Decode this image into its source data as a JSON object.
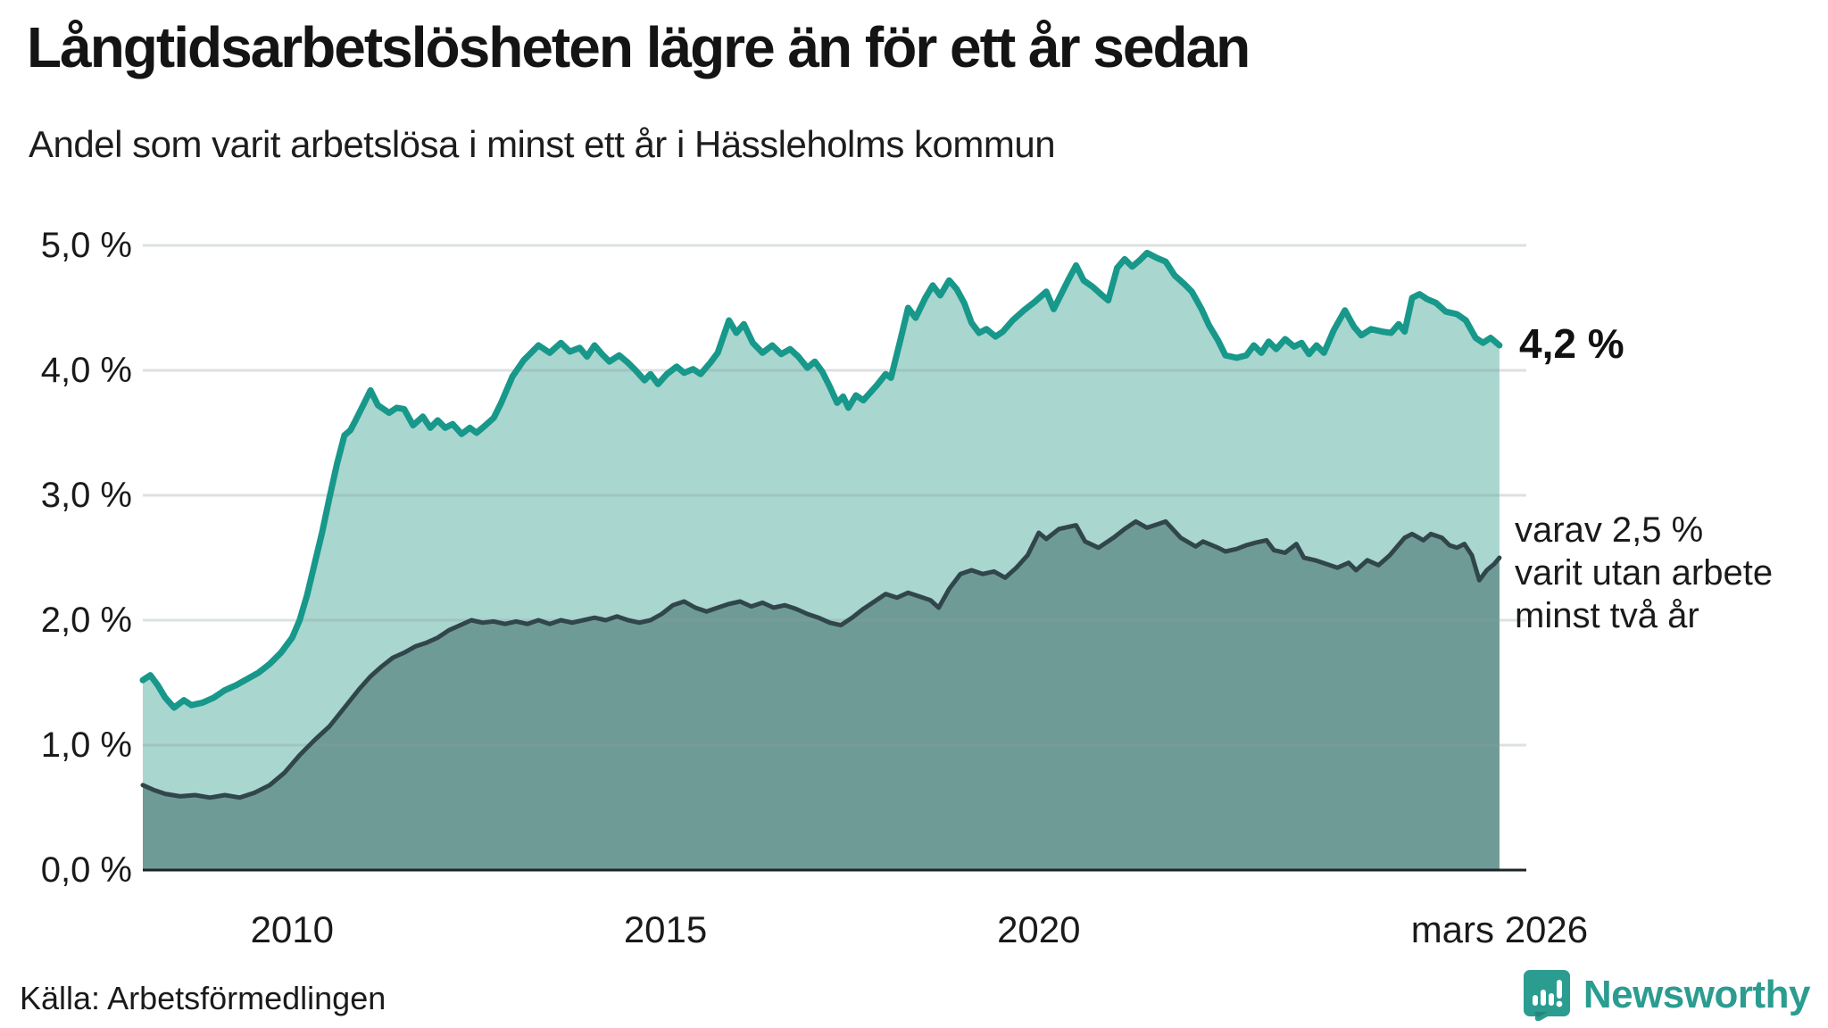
{
  "title": "Långtidsarbetslösheten lägre än för ett år sedan",
  "subtitle": "Andel som varit arbetslösa i minst ett år i Hässleholms kommun",
  "annotations": {
    "end_value_label": "4,2 %",
    "secondary_lines": [
      "varav 2,5 %",
      "varit utan arbete",
      "minst två år"
    ]
  },
  "footer": {
    "source": "Källa: Arbetsförmedlingen",
    "brand": "Newsworthy"
  },
  "colors": {
    "accent_teal": "#17988a",
    "light_fill": "#a9d6cf",
    "dark_line": "#31464b",
    "dark_fill": "#6f9b97",
    "gridline": "rgba(140,155,160,0.30)",
    "baseline": "#1c2527",
    "brand_teal": "#2b9c90",
    "text": "#1a1a1a"
  },
  "chart_data": {
    "type": "area",
    "title": "Långtidsarbetslösheten lägre än för ett år sedan",
    "subtitle": "Andel som varit arbetslösa i minst ett år i Hässleholms kommun",
    "unit": "%",
    "xlim": [
      2008.0,
      2026.25
    ],
    "ylim": [
      0,
      5.25
    ],
    "grid": "horizontal",
    "legend_position": "none",
    "y_ticks": [
      {
        "label": "5,0 %",
        "value": 5.0
      },
      {
        "label": "4,0 %",
        "value": 4.0
      },
      {
        "label": "3,0 %",
        "value": 3.0
      },
      {
        "label": "2,0 %",
        "value": 2.0
      },
      {
        "label": "1,0 %",
        "value": 1.0
      },
      {
        "label": "0,0 %",
        "value": 0.0
      }
    ],
    "x_ticks": [
      {
        "label": "2010",
        "year": 2010.0
      },
      {
        "label": "2015",
        "year": 2015.0
      },
      {
        "label": "2020",
        "year": 2020.0
      },
      {
        "label": "mars 2026",
        "year": 2026.17
      }
    ],
    "series": [
      {
        "name": "Andel arbetslösa minst ett år",
        "end_label": "4,2 %",
        "end_value": 4.2,
        "stroke": "#17988a",
        "fill": "#a9d6cf",
        "stroke_width": 7,
        "points": [
          [
            2008.0,
            1.52
          ],
          [
            2008.1,
            1.56
          ],
          [
            2008.2,
            1.48
          ],
          [
            2008.3,
            1.38
          ],
          [
            2008.42,
            1.3
          ],
          [
            2008.55,
            1.36
          ],
          [
            2008.65,
            1.32
          ],
          [
            2008.8,
            1.34
          ],
          [
            2008.95,
            1.38
          ],
          [
            2009.1,
            1.44
          ],
          [
            2009.25,
            1.48
          ],
          [
            2009.4,
            1.53
          ],
          [
            2009.55,
            1.58
          ],
          [
            2009.7,
            1.65
          ],
          [
            2009.85,
            1.74
          ],
          [
            2010.0,
            1.86
          ],
          [
            2010.1,
            2.0
          ],
          [
            2010.2,
            2.2
          ],
          [
            2010.3,
            2.45
          ],
          [
            2010.4,
            2.7
          ],
          [
            2010.5,
            2.98
          ],
          [
            2010.6,
            3.25
          ],
          [
            2010.7,
            3.48
          ],
          [
            2010.78,
            3.52
          ],
          [
            2010.85,
            3.6
          ],
          [
            2010.95,
            3.72
          ],
          [
            2011.05,
            3.84
          ],
          [
            2011.15,
            3.72
          ],
          [
            2011.3,
            3.66
          ],
          [
            2011.4,
            3.7
          ],
          [
            2011.5,
            3.69
          ],
          [
            2011.62,
            3.56
          ],
          [
            2011.75,
            3.63
          ],
          [
            2011.85,
            3.54
          ],
          [
            2011.95,
            3.6
          ],
          [
            2012.05,
            3.54
          ],
          [
            2012.15,
            3.57
          ],
          [
            2012.27,
            3.49
          ],
          [
            2012.38,
            3.54
          ],
          [
            2012.47,
            3.5
          ],
          [
            2012.57,
            3.55
          ],
          [
            2012.7,
            3.62
          ],
          [
            2012.8,
            3.74
          ],
          [
            2012.95,
            3.95
          ],
          [
            2013.1,
            4.08
          ],
          [
            2013.3,
            4.2
          ],
          [
            2013.45,
            4.14
          ],
          [
            2013.6,
            4.22
          ],
          [
            2013.72,
            4.15
          ],
          [
            2013.85,
            4.18
          ],
          [
            2013.95,
            4.11
          ],
          [
            2014.05,
            4.2
          ],
          [
            2014.15,
            4.13
          ],
          [
            2014.25,
            4.07
          ],
          [
            2014.38,
            4.12
          ],
          [
            2014.5,
            4.06
          ],
          [
            2014.6,
            4.0
          ],
          [
            2014.72,
            3.92
          ],
          [
            2014.8,
            3.97
          ],
          [
            2014.9,
            3.89
          ],
          [
            2015.02,
            3.97
          ],
          [
            2015.15,
            4.03
          ],
          [
            2015.25,
            3.98
          ],
          [
            2015.37,
            4.01
          ],
          [
            2015.47,
            3.97
          ],
          [
            2015.6,
            4.06
          ],
          [
            2015.7,
            4.14
          ],
          [
            2015.85,
            4.4
          ],
          [
            2015.95,
            4.3
          ],
          [
            2016.05,
            4.37
          ],
          [
            2016.17,
            4.22
          ],
          [
            2016.3,
            4.14
          ],
          [
            2016.43,
            4.2
          ],
          [
            2016.55,
            4.13
          ],
          [
            2016.67,
            4.17
          ],
          [
            2016.78,
            4.11
          ],
          [
            2016.9,
            4.02
          ],
          [
            2017.0,
            4.07
          ],
          [
            2017.1,
            3.99
          ],
          [
            2017.2,
            3.87
          ],
          [
            2017.3,
            3.74
          ],
          [
            2017.38,
            3.79
          ],
          [
            2017.45,
            3.7
          ],
          [
            2017.55,
            3.8
          ],
          [
            2017.65,
            3.76
          ],
          [
            2017.83,
            3.88
          ],
          [
            2017.95,
            3.97
          ],
          [
            2018.02,
            3.94
          ],
          [
            2018.15,
            4.25
          ],
          [
            2018.25,
            4.5
          ],
          [
            2018.35,
            4.42
          ],
          [
            2018.48,
            4.58
          ],
          [
            2018.58,
            4.68
          ],
          [
            2018.68,
            4.6
          ],
          [
            2018.8,
            4.72
          ],
          [
            2018.9,
            4.65
          ],
          [
            2019.0,
            4.54
          ],
          [
            2019.1,
            4.38
          ],
          [
            2019.2,
            4.3
          ],
          [
            2019.3,
            4.33
          ],
          [
            2019.42,
            4.27
          ],
          [
            2019.52,
            4.31
          ],
          [
            2019.65,
            4.4
          ],
          [
            2019.8,
            4.48
          ],
          [
            2019.95,
            4.55
          ],
          [
            2020.1,
            4.63
          ],
          [
            2020.2,
            4.49
          ],
          [
            2020.3,
            4.61
          ],
          [
            2020.4,
            4.73
          ],
          [
            2020.5,
            4.84
          ],
          [
            2020.6,
            4.72
          ],
          [
            2020.72,
            4.67
          ],
          [
            2020.85,
            4.6
          ],
          [
            2020.93,
            4.56
          ],
          [
            2021.05,
            4.82
          ],
          [
            2021.15,
            4.89
          ],
          [
            2021.25,
            4.83
          ],
          [
            2021.35,
            4.88
          ],
          [
            2021.45,
            4.94
          ],
          [
            2021.58,
            4.9
          ],
          [
            2021.7,
            4.87
          ],
          [
            2021.82,
            4.76
          ],
          [
            2021.95,
            4.69
          ],
          [
            2022.05,
            4.63
          ],
          [
            2022.18,
            4.49
          ],
          [
            2022.28,
            4.36
          ],
          [
            2022.4,
            4.24
          ],
          [
            2022.5,
            4.12
          ],
          [
            2022.65,
            4.1
          ],
          [
            2022.78,
            4.12
          ],
          [
            2022.88,
            4.2
          ],
          [
            2022.98,
            4.14
          ],
          [
            2023.08,
            4.23
          ],
          [
            2023.18,
            4.17
          ],
          [
            2023.3,
            4.25
          ],
          [
            2023.42,
            4.19
          ],
          [
            2023.52,
            4.22
          ],
          [
            2023.62,
            4.13
          ],
          [
            2023.72,
            4.2
          ],
          [
            2023.82,
            4.14
          ],
          [
            2023.95,
            4.32
          ],
          [
            2024.1,
            4.48
          ],
          [
            2024.22,
            4.35
          ],
          [
            2024.32,
            4.28
          ],
          [
            2024.45,
            4.33
          ],
          [
            2024.6,
            4.31
          ],
          [
            2024.72,
            4.3
          ],
          [
            2024.82,
            4.37
          ],
          [
            2024.9,
            4.31
          ],
          [
            2025.0,
            4.58
          ],
          [
            2025.1,
            4.61
          ],
          [
            2025.2,
            4.57
          ],
          [
            2025.32,
            4.54
          ],
          [
            2025.45,
            4.47
          ],
          [
            2025.6,
            4.45
          ],
          [
            2025.72,
            4.4
          ],
          [
            2025.85,
            4.26
          ],
          [
            2025.95,
            4.22
          ],
          [
            2026.05,
            4.26
          ],
          [
            2026.17,
            4.2
          ]
        ]
      },
      {
        "name": "varav utan arbete minst två år",
        "end_label": "varav 2,5 % varit utan arbete minst två år",
        "end_value": 2.5,
        "stroke": "#31464b",
        "fill": "#6f9b97",
        "stroke_width": 5,
        "points": [
          [
            2008.0,
            0.68
          ],
          [
            2008.15,
            0.64
          ],
          [
            2008.3,
            0.61
          ],
          [
            2008.5,
            0.59
          ],
          [
            2008.7,
            0.6
          ],
          [
            2008.9,
            0.58
          ],
          [
            2009.1,
            0.6
          ],
          [
            2009.3,
            0.58
          ],
          [
            2009.5,
            0.62
          ],
          [
            2009.7,
            0.68
          ],
          [
            2009.9,
            0.78
          ],
          [
            2010.1,
            0.92
          ],
          [
            2010.3,
            1.04
          ],
          [
            2010.5,
            1.15
          ],
          [
            2010.7,
            1.3
          ],
          [
            2010.9,
            1.45
          ],
          [
            2011.05,
            1.55
          ],
          [
            2011.2,
            1.63
          ],
          [
            2011.35,
            1.7
          ],
          [
            2011.5,
            1.74
          ],
          [
            2011.65,
            1.79
          ],
          [
            2011.8,
            1.82
          ],
          [
            2011.95,
            1.86
          ],
          [
            2012.1,
            1.92
          ],
          [
            2012.25,
            1.96
          ],
          [
            2012.4,
            2.0
          ],
          [
            2012.55,
            1.98
          ],
          [
            2012.7,
            1.99
          ],
          [
            2012.85,
            1.97
          ],
          [
            2013.0,
            1.99
          ],
          [
            2013.15,
            1.97
          ],
          [
            2013.3,
            2.0
          ],
          [
            2013.45,
            1.97
          ],
          [
            2013.6,
            2.0
          ],
          [
            2013.75,
            1.98
          ],
          [
            2013.9,
            2.0
          ],
          [
            2014.05,
            2.02
          ],
          [
            2014.2,
            2.0
          ],
          [
            2014.35,
            2.03
          ],
          [
            2014.5,
            2.0
          ],
          [
            2014.65,
            1.98
          ],
          [
            2014.8,
            2.0
          ],
          [
            2014.95,
            2.05
          ],
          [
            2015.1,
            2.12
          ],
          [
            2015.25,
            2.15
          ],
          [
            2015.4,
            2.1
          ],
          [
            2015.55,
            2.07
          ],
          [
            2015.7,
            2.1
          ],
          [
            2015.85,
            2.13
          ],
          [
            2016.0,
            2.15
          ],
          [
            2016.15,
            2.11
          ],
          [
            2016.3,
            2.14
          ],
          [
            2016.45,
            2.1
          ],
          [
            2016.6,
            2.12
          ],
          [
            2016.75,
            2.09
          ],
          [
            2016.9,
            2.05
          ],
          [
            2017.05,
            2.02
          ],
          [
            2017.2,
            1.98
          ],
          [
            2017.35,
            1.96
          ],
          [
            2017.5,
            2.02
          ],
          [
            2017.65,
            2.09
          ],
          [
            2017.8,
            2.15
          ],
          [
            2017.95,
            2.21
          ],
          [
            2018.1,
            2.18
          ],
          [
            2018.25,
            2.22
          ],
          [
            2018.4,
            2.19
          ],
          [
            2018.55,
            2.16
          ],
          [
            2018.66,
            2.1
          ],
          [
            2018.8,
            2.25
          ],
          [
            2018.95,
            2.37
          ],
          [
            2019.1,
            2.4
          ],
          [
            2019.25,
            2.37
          ],
          [
            2019.4,
            2.39
          ],
          [
            2019.55,
            2.34
          ],
          [
            2019.7,
            2.42
          ],
          [
            2019.85,
            2.52
          ],
          [
            2020.0,
            2.7
          ],
          [
            2020.1,
            2.65
          ],
          [
            2020.27,
            2.73
          ],
          [
            2020.5,
            2.76
          ],
          [
            2020.62,
            2.63
          ],
          [
            2020.8,
            2.58
          ],
          [
            2021.0,
            2.66
          ],
          [
            2021.15,
            2.73
          ],
          [
            2021.3,
            2.79
          ],
          [
            2021.45,
            2.74
          ],
          [
            2021.6,
            2.77
          ],
          [
            2021.7,
            2.79
          ],
          [
            2021.9,
            2.66
          ],
          [
            2022.1,
            2.59
          ],
          [
            2022.2,
            2.63
          ],
          [
            2022.4,
            2.58
          ],
          [
            2022.5,
            2.55
          ],
          [
            2022.65,
            2.57
          ],
          [
            2022.78,
            2.6
          ],
          [
            2022.9,
            2.62
          ],
          [
            2023.05,
            2.64
          ],
          [
            2023.15,
            2.56
          ],
          [
            2023.3,
            2.54
          ],
          [
            2023.45,
            2.61
          ],
          [
            2023.55,
            2.5
          ],
          [
            2023.7,
            2.48
          ],
          [
            2023.85,
            2.45
          ],
          [
            2024.0,
            2.42
          ],
          [
            2024.15,
            2.46
          ],
          [
            2024.25,
            2.4
          ],
          [
            2024.4,
            2.48
          ],
          [
            2024.55,
            2.44
          ],
          [
            2024.7,
            2.52
          ],
          [
            2024.9,
            2.66
          ],
          [
            2025.0,
            2.69
          ],
          [
            2025.15,
            2.64
          ],
          [
            2025.25,
            2.69
          ],
          [
            2025.4,
            2.66
          ],
          [
            2025.5,
            2.6
          ],
          [
            2025.6,
            2.58
          ],
          [
            2025.7,
            2.61
          ],
          [
            2025.8,
            2.52
          ],
          [
            2025.9,
            2.32
          ],
          [
            2026.0,
            2.4
          ],
          [
            2026.1,
            2.45
          ],
          [
            2026.17,
            2.5
          ]
        ]
      }
    ]
  }
}
